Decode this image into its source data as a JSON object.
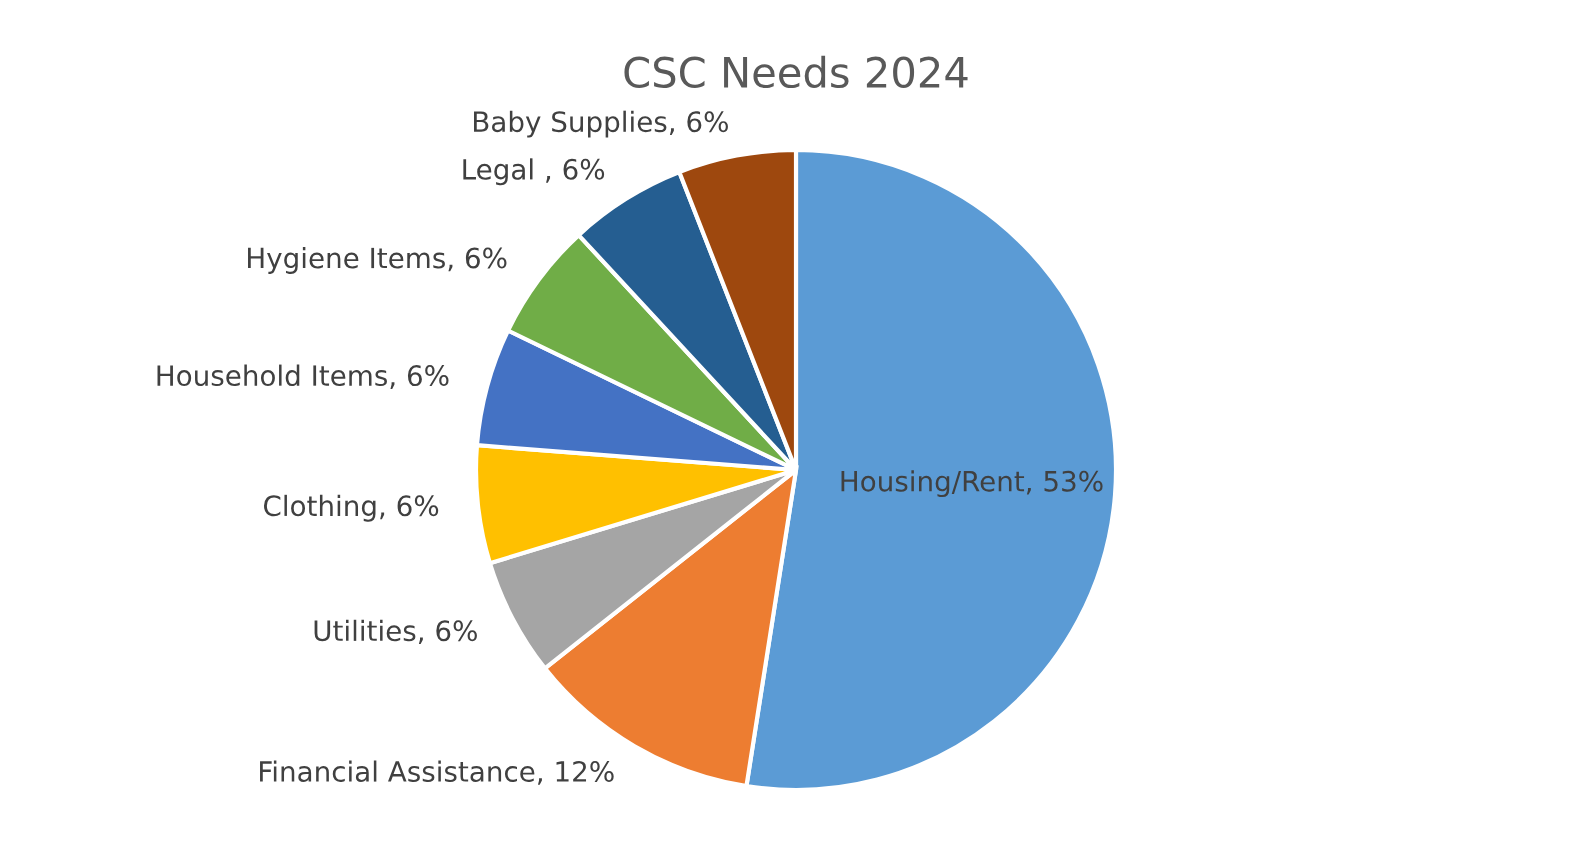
{
  "chart_data": {
    "type": "pie",
    "title": "CSC Needs 2024",
    "categories": [
      "Housing/Rent",
      "Financial Assistance",
      "Utilities",
      "Clothing",
      "Household Items",
      "Hygiene Items",
      "Legal ",
      "Baby Supplies"
    ],
    "values": [
      53,
      12,
      6,
      6,
      6,
      6,
      6,
      6
    ],
    "value_labels": [
      "53%",
      "12%",
      "6%",
      "6%",
      "6%",
      "6%",
      "6%",
      "6%"
    ],
    "colors": [
      "#5b9bd5",
      "#ed7d31",
      "#a5a5a5",
      "#ffc000",
      "#4472c4",
      "#70ad47",
      "#255e91",
      "#9e480e"
    ]
  }
}
